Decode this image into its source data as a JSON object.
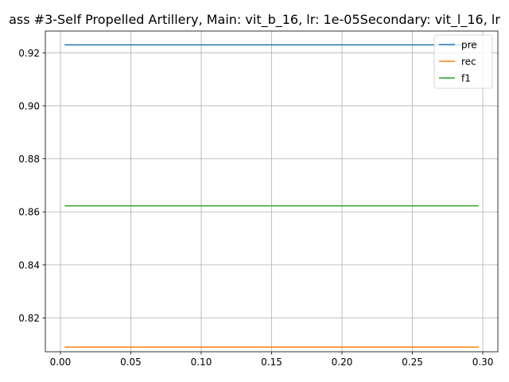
{
  "chart_data": {
    "type": "line",
    "title": "ass #3-Self Propelled Artillery, Main: vit_b_16, lr: 1e-05Secondary: vit_l_16, lr",
    "xlabel": "",
    "ylabel": "",
    "xlim": [
      -0.0107,
      0.3107
    ],
    "ylim": [
      0.80725,
      0.9282
    ],
    "grid": true,
    "legend_position": "top-right",
    "x_ticks": [
      "0.00",
      "0.05",
      "0.10",
      "0.15",
      "0.20",
      "0.25",
      "0.30"
    ],
    "y_ticks": [
      "0.82",
      "0.84",
      "0.86",
      "0.88",
      "0.90",
      "0.92"
    ],
    "x": [
      0.003,
      0.297
    ],
    "series": [
      {
        "name": "pre",
        "values": [
          0.923,
          0.923
        ],
        "color": "#1f77b4"
      },
      {
        "name": "rec",
        "values": [
          0.809,
          0.809
        ],
        "color": "#ff7f0e"
      },
      {
        "name": "f1",
        "values": [
          0.8623,
          0.8623
        ],
        "color": "#2ca02c"
      }
    ]
  }
}
